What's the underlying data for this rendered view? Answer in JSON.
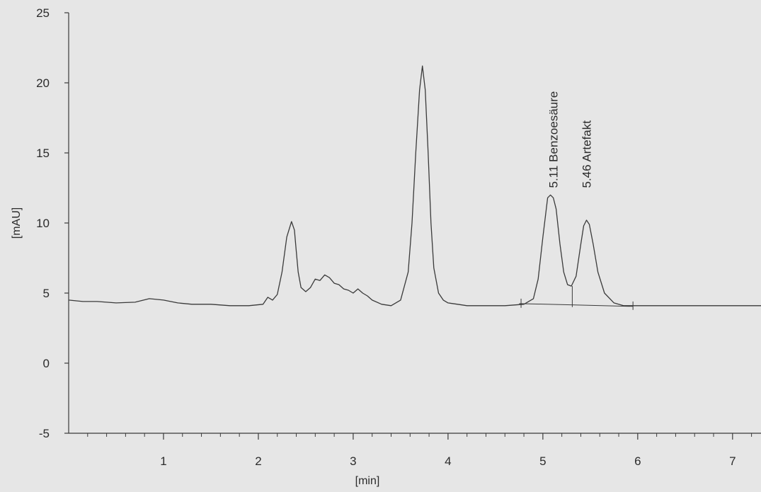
{
  "chart_data": {
    "type": "line",
    "title": "",
    "xlabel": "[min]",
    "ylabel": "[mAU]",
    "xlim": [
      0,
      7.3
    ],
    "ylim": [
      -5,
      25
    ],
    "x_ticks": [
      1,
      2,
      3,
      4,
      5,
      6,
      7
    ],
    "y_ticks": [
      -5,
      0,
      5,
      10,
      15,
      20,
      25
    ],
    "grid": false,
    "colors": {
      "background": "#e6e6e6",
      "trace": "#3a3a3a",
      "axis": "#3a3a3a",
      "text": "#2b2b2b"
    },
    "series": [
      {
        "x": [
          0.0,
          0.15,
          0.3,
          0.5,
          0.7,
          0.85,
          1.0,
          1.15,
          1.3,
          1.5,
          1.7,
          1.9,
          2.05,
          2.1,
          2.15,
          2.2,
          2.25,
          2.3,
          2.35,
          2.38,
          2.4,
          2.42,
          2.45,
          2.5,
          2.55,
          2.6,
          2.65,
          2.7,
          2.75,
          2.8,
          2.85,
          2.9,
          2.95,
          3.0,
          3.05,
          3.1,
          3.15,
          3.2,
          3.3,
          3.4,
          3.5,
          3.58,
          3.62,
          3.66,
          3.7,
          3.73,
          3.76,
          3.79,
          3.82,
          3.85,
          3.9,
          3.95,
          4.0,
          4.1,
          4.2,
          4.4,
          4.6,
          4.8,
          4.9,
          4.95,
          5.0,
          5.05,
          5.08,
          5.11,
          5.14,
          5.18,
          5.22,
          5.26,
          5.3,
          5.35,
          5.4,
          5.43,
          5.46,
          5.49,
          5.53,
          5.58,
          5.65,
          5.75,
          5.85,
          6.0,
          6.2,
          6.5,
          6.8,
          7.0,
          7.3
        ],
        "y": [
          4.5,
          4.4,
          4.4,
          4.3,
          4.35,
          4.6,
          4.5,
          4.3,
          4.2,
          4.2,
          4.1,
          4.1,
          4.2,
          4.7,
          4.5,
          4.9,
          6.5,
          9.0,
          10.1,
          9.5,
          8.0,
          6.5,
          5.4,
          5.1,
          5.4,
          6.0,
          5.9,
          6.3,
          6.1,
          5.7,
          5.6,
          5.3,
          5.2,
          5.0,
          5.3,
          5.0,
          4.8,
          4.5,
          4.2,
          4.1,
          4.5,
          6.5,
          10.0,
          15.0,
          19.5,
          21.2,
          19.5,
          15.0,
          10.0,
          6.8,
          5.0,
          4.5,
          4.3,
          4.2,
          4.1,
          4.1,
          4.1,
          4.2,
          4.6,
          6.0,
          9.0,
          11.8,
          12.0,
          11.8,
          11.0,
          8.5,
          6.5,
          5.6,
          5.5,
          6.2,
          8.5,
          9.8,
          10.2,
          9.9,
          8.5,
          6.5,
          5.0,
          4.3,
          4.1,
          4.1,
          4.1,
          4.1,
          4.1,
          4.1,
          4.1
        ]
      }
    ],
    "annotations": [
      {
        "x": 5.11,
        "text": "5.11 Benzoesäure"
      },
      {
        "x": 5.46,
        "text": "5.46 Artefakt"
      }
    ]
  }
}
